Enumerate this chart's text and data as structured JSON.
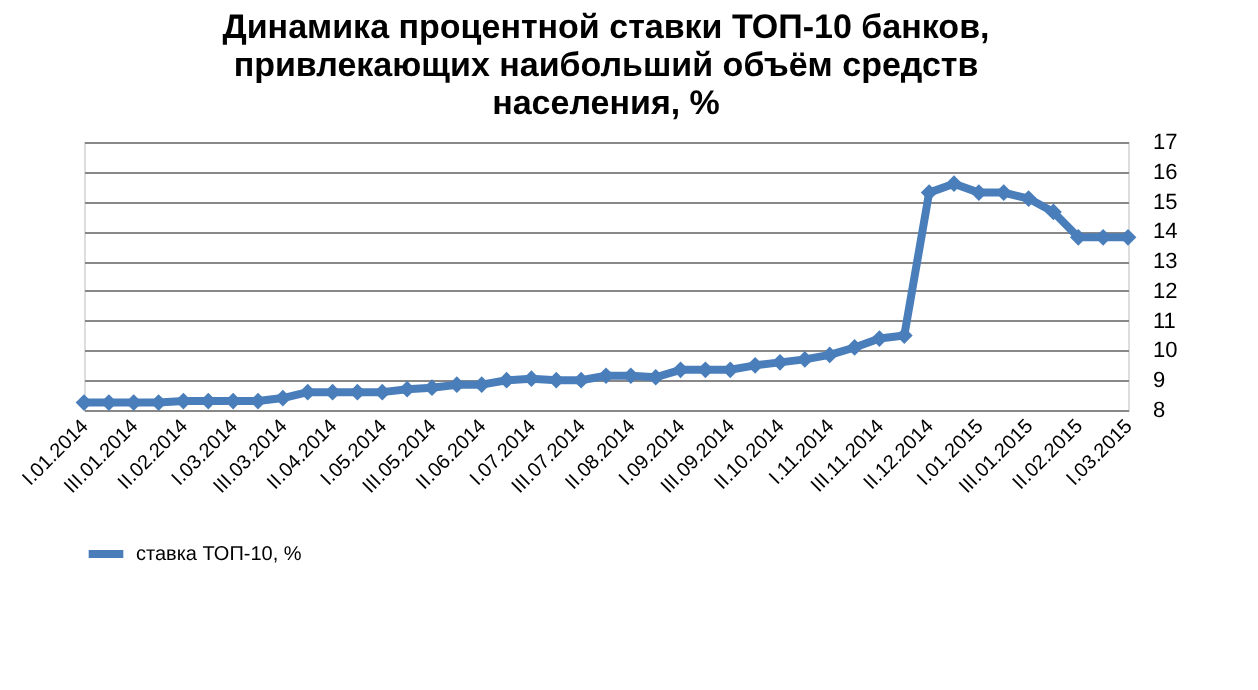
{
  "chart_data": {
    "type": "line",
    "title": [
      "Динамика процентной  ставки ТОП-10 банков,",
      "привлекающих наибольший  объём средств",
      "населения, %"
    ],
    "categories": [
      "I.01.2014",
      null,
      "III.01.2014",
      null,
      "II.02.2014",
      null,
      "I.03.2014",
      null,
      "III.03.2014",
      null,
      "II.04.2014",
      null,
      "I.05.2014",
      null,
      "III.05.2014",
      null,
      "II.06.2014",
      null,
      "I.07.2014",
      null,
      "III.07.2014",
      null,
      "II.08.2014",
      null,
      "I.09.2014",
      null,
      "III.09.2014",
      null,
      "II.10.2014",
      null,
      "I.11.2014",
      null,
      "III.11.2014",
      null,
      "II.12.2014",
      null,
      "I.01.2015",
      null,
      "III.01.2015",
      null,
      "II.02.2015",
      null,
      "I.03.2015"
    ],
    "series": [
      {
        "name": "ставка ТОП-10, %",
        "color": "#4a7ebb",
        "values": [
          8.25,
          8.25,
          8.25,
          8.25,
          8.3,
          8.3,
          8.3,
          8.3,
          8.4,
          8.6,
          8.6,
          8.6,
          8.6,
          8.7,
          8.75,
          8.85,
          8.85,
          9.0,
          9.05,
          9.0,
          9.0,
          9.15,
          9.15,
          9.1,
          9.35,
          9.35,
          9.35,
          9.5,
          9.6,
          9.7,
          9.85,
          10.1,
          10.4,
          10.5,
          15.3,
          15.6,
          15.3,
          15.3,
          15.1,
          14.65,
          13.8,
          13.8,
          13.8
        ]
      }
    ],
    "ylim": [
      8,
      17
    ],
    "yticks": [
      8,
      9,
      10,
      11,
      12,
      13,
      14,
      15,
      16,
      17
    ],
    "grid": "y",
    "legend": "bottom",
    "marker": "diamond",
    "line_style": "solid"
  }
}
